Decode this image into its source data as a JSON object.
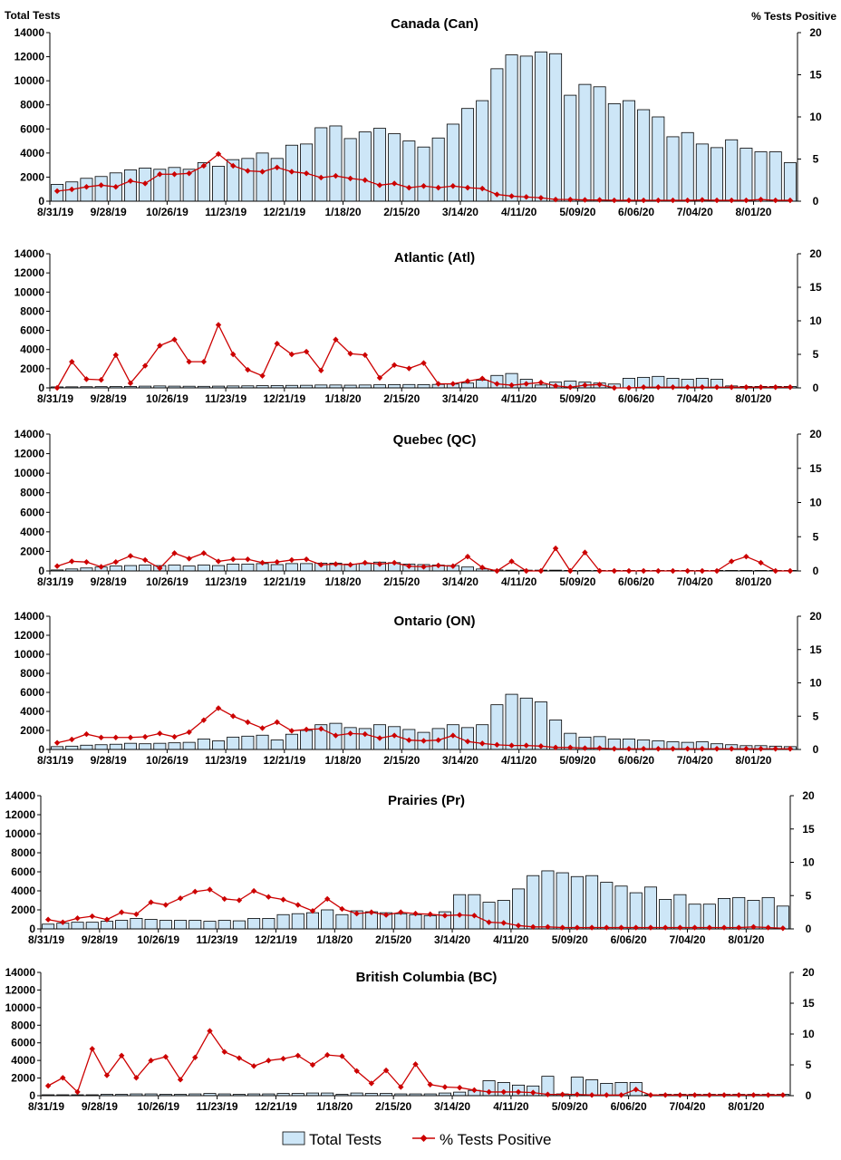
{
  "header": {
    "left_axis_label": "Total Tests",
    "right_axis_label": "% Tests Positive"
  },
  "legend": {
    "bars_label": "Total Tests",
    "line_label": "% Tests Positive"
  },
  "colors": {
    "bar_fill": "#cde6f7",
    "bar_stroke": "#000000",
    "line": "#cc0000"
  },
  "x_tick_labels": [
    "8/31/19",
    "9/28/19",
    "10/26/19",
    "11/23/19",
    "12/21/19",
    "1/18/20",
    "2/15/20",
    "3/14/20",
    "4/11/20",
    "5/09/20",
    "6/06/20",
    "7/04/20",
    "8/01/20"
  ],
  "y_left_ticks": [
    "0",
    "2000",
    "4000",
    "6000",
    "8000",
    "10000",
    "12000",
    "14000"
  ],
  "y_right_ticks": [
    "0",
    "5",
    "10",
    "15",
    "20"
  ],
  "chart_data": [
    {
      "type": "bar",
      "title": "Canada (Can)",
      "x_tick_labels": [
        "8/31/19",
        "9/28/19",
        "10/26/19",
        "11/23/19",
        "12/21/19",
        "1/18/20",
        "2/15/20",
        "3/14/20",
        "4/11/20",
        "5/09/20",
        "6/06/20",
        "7/04/20",
        "8/01/20"
      ],
      "ylim": [
        0,
        14000
      ],
      "y2lim": [
        0,
        20
      ],
      "series": [
        {
          "name": "Total Tests",
          "axis": "left",
          "values": [
            1400,
            1600,
            1900,
            2050,
            2350,
            2600,
            2750,
            2650,
            2800,
            2650,
            3200,
            2900,
            3450,
            3550,
            4000,
            3550,
            4650,
            4750,
            6100,
            6250,
            5200,
            5750,
            6050,
            5600,
            5000,
            4500,
            5250,
            6400,
            7700,
            8350,
            11000,
            12150,
            12050,
            12400,
            12250,
            8800,
            9700,
            9500,
            8100,
            8350,
            7600,
            7000,
            5350,
            5700,
            4750,
            4450,
            5100,
            4400,
            4100,
            4100,
            3200
          ]
        },
        {
          "name": "% Tests Positive",
          "axis": "right",
          "values": [
            1.2,
            1.4,
            1.7,
            1.9,
            1.7,
            2.4,
            2.1,
            3.2,
            3.2,
            3.3,
            4.2,
            5.6,
            4.2,
            3.6,
            3.5,
            4.0,
            3.5,
            3.3,
            2.8,
            3.0,
            2.7,
            2.5,
            1.9,
            2.1,
            1.6,
            1.8,
            1.6,
            1.8,
            1.6,
            1.5,
            0.8,
            0.6,
            0.5,
            0.4,
            0.2,
            0.2,
            0.15,
            0.15,
            0.1,
            0.1,
            0.1,
            0.1,
            0.1,
            0.1,
            0.15,
            0.1,
            0.1,
            0.1,
            0.2,
            0.1,
            0.1
          ]
        }
      ]
    },
    {
      "type": "bar",
      "title": "Atlantic (Atl)",
      "x_tick_labels": [
        "8/31/19",
        "9/28/19",
        "10/26/19",
        "11/23/19",
        "12/21/19",
        "1/18/20",
        "2/15/20",
        "3/14/20",
        "4/11/20",
        "5/09/20",
        "6/06/20",
        "7/04/20",
        "8/01/20"
      ],
      "ylim": [
        0,
        14000
      ],
      "y2lim": [
        0,
        20
      ],
      "series": [
        {
          "name": "Total Tests",
          "axis": "left",
          "values": [
            100,
            110,
            120,
            130,
            140,
            150,
            180,
            200,
            180,
            170,
            160,
            180,
            200,
            210,
            230,
            250,
            260,
            270,
            300,
            300,
            280,
            300,
            320,
            340,
            350,
            340,
            360,
            400,
            500,
            800,
            1300,
            1500,
            900,
            300,
            600,
            700,
            600,
            500,
            400,
            1000,
            1100,
            1200,
            1000,
            900,
            1000,
            900,
            200,
            150,
            150,
            150,
            150
          ]
        },
        {
          "name": "% Tests Positive",
          "axis": "right",
          "values": [
            0,
            3.9,
            1.3,
            1.2,
            4.9,
            0.7,
            3.3,
            6.3,
            7.2,
            3.9,
            3.9,
            9.4,
            5.0,
            2.7,
            1.8,
            6.6,
            5.0,
            5.4,
            2.6,
            7.2,
            5.1,
            4.9,
            1.5,
            3.4,
            2.9,
            3.7,
            0.6,
            0.6,
            1.0,
            1.4,
            0.6,
            0.4,
            0.6,
            0.8,
            0.3,
            0.1,
            0.4,
            0.5,
            0,
            0,
            0.1,
            0.1,
            0.1,
            0.1,
            0.1,
            0.1,
            0.1,
            0.1,
            0.1,
            0.1,
            0.1
          ]
        }
      ]
    },
    {
      "type": "bar",
      "title": "Quebec (QC)",
      "x_tick_labels": [
        "8/31/19",
        "9/28/19",
        "10/26/19",
        "11/23/19",
        "12/21/19",
        "1/18/20",
        "2/15/20",
        "3/14/20",
        "4/11/20",
        "5/09/20",
        "6/06/20",
        "7/04/20",
        "8/01/20"
      ],
      "ylim": [
        0,
        14000
      ],
      "y2lim": [
        0,
        20
      ],
      "series": [
        {
          "name": "Total Tests",
          "axis": "left",
          "values": [
            100,
            200,
            300,
            400,
            500,
            550,
            600,
            550,
            600,
            500,
            600,
            550,
            700,
            700,
            750,
            650,
            750,
            750,
            800,
            800,
            700,
            750,
            900,
            850,
            700,
            650,
            600,
            550,
            400,
            200,
            100,
            80,
            80,
            80,
            80,
            50,
            50,
            50,
            50,
            50,
            50,
            50,
            50,
            50,
            50,
            50,
            50,
            50,
            50,
            50,
            50
          ]
        },
        {
          "name": "% Tests Positive",
          "axis": "right",
          "values": [
            0.7,
            1.4,
            1.3,
            0.6,
            1.3,
            2.2,
            1.6,
            0.4,
            2.6,
            1.8,
            2.6,
            1.4,
            1.7,
            1.7,
            1.2,
            1.3,
            1.6,
            1.7,
            0.9,
            1.0,
            0.9,
            1.2,
            1.0,
            1.2,
            0.7,
            0.6,
            0.8,
            0.7,
            2.1,
            0.5,
            0,
            1.4,
            0,
            0,
            3.3,
            0,
            2.7,
            0,
            0,
            0,
            0,
            0,
            0,
            0,
            0,
            0,
            1.4,
            2.1,
            1.2,
            0,
            0
          ]
        }
      ]
    },
    {
      "type": "bar",
      "title": "Ontario (ON)",
      "x_tick_labels": [
        "8/31/19",
        "9/28/19",
        "10/26/19",
        "11/23/19",
        "12/21/19",
        "1/18/20",
        "2/15/20",
        "3/14/20",
        "4/11/20",
        "5/09/20",
        "6/06/20",
        "7/04/20",
        "8/01/20"
      ],
      "ylim": [
        0,
        14000
      ],
      "y2lim": [
        0,
        20
      ],
      "series": [
        {
          "name": "Total Tests",
          "axis": "left",
          "values": [
            300,
            350,
            450,
            500,
            550,
            650,
            600,
            650,
            700,
            750,
            1100,
            900,
            1300,
            1400,
            1500,
            1000,
            1600,
            2000,
            2600,
            2750,
            2300,
            2200,
            2600,
            2400,
            2100,
            1800,
            2200,
            2600,
            2300,
            2600,
            4700,
            5800,
            5400,
            5000,
            3100,
            1700,
            1300,
            1350,
            1100,
            1100,
            1000,
            900,
            800,
            750,
            800,
            600,
            500,
            400,
            400,
            350,
            300
          ]
        },
        {
          "name": "% Tests Positive",
          "axis": "right",
          "values": [
            1.0,
            1.5,
            2.3,
            1.8,
            1.8,
            1.8,
            1.9,
            2.4,
            1.9,
            2.6,
            4.4,
            6.2,
            5.0,
            4.1,
            3.2,
            4.1,
            2.8,
            3.0,
            3.1,
            2.1,
            2.4,
            2.3,
            1.7,
            2.1,
            1.4,
            1.3,
            1.4,
            2.1,
            1.2,
            0.9,
            0.7,
            0.6,
            0.6,
            0.5,
            0.3,
            0.3,
            0.2,
            0.2,
            0.1,
            0.1,
            0.1,
            0.1,
            0.1,
            0.1,
            0.1,
            0.1,
            0.1,
            0.1,
            0.1,
            0.1,
            0.1
          ]
        }
      ]
    },
    {
      "type": "bar",
      "title": "Prairies (Pr)",
      "x_tick_labels": [
        "8/31/19",
        "9/28/19",
        "10/26/19",
        "11/23/19",
        "12/21/19",
        "1/18/20",
        "2/15/20",
        "3/14/20",
        "4/11/20",
        "5/09/20",
        "6/06/20",
        "7/04/20",
        "8/01/20"
      ],
      "ylim": [
        0,
        14000
      ],
      "y2lim": [
        0,
        20
      ],
      "series": [
        {
          "name": "Total Tests",
          "axis": "left",
          "values": [
            500,
            600,
            700,
            700,
            800,
            900,
            1100,
            1000,
            900,
            900,
            900,
            800,
            900,
            850,
            1100,
            1100,
            1500,
            1600,
            1700,
            2000,
            1500,
            1900,
            1800,
            1700,
            1600,
            1500,
            1400,
            1800,
            3600,
            3600,
            2800,
            3000,
            4200,
            5600,
            6100,
            5900,
            5500,
            5600,
            4900,
            4500,
            3800,
            4400,
            3100,
            3600,
            2600,
            2600,
            3200,
            3300,
            3000,
            3300,
            2400
          ]
        },
        {
          "name": "% Tests Positive",
          "axis": "right",
          "values": [
            1.4,
            1.0,
            1.6,
            1.9,
            1.4,
            2.5,
            2.2,
            4.0,
            3.6,
            4.6,
            5.6,
            5.9,
            4.5,
            4.3,
            5.7,
            4.8,
            4.4,
            3.6,
            2.7,
            4.5,
            3.0,
            2.3,
            2.5,
            2.1,
            2.5,
            2.3,
            2.2,
            2.0,
            2.1,
            2.0,
            1.0,
            0.9,
            0.5,
            0.3,
            0.3,
            0.2,
            0.2,
            0.2,
            0.2,
            0.2,
            0.2,
            0.2,
            0.2,
            0.2,
            0.2,
            0.2,
            0.2,
            0.2,
            0.3,
            0.2,
            0.1
          ]
        }
      ]
    },
    {
      "type": "bar",
      "title": "British Columbia (BC)",
      "x_tick_labels": [
        "8/31/19",
        "9/28/19",
        "10/26/19",
        "11/23/19",
        "12/21/19",
        "1/18/20",
        "2/15/20",
        "3/14/20",
        "4/11/20",
        "5/09/20",
        "6/06/20",
        "7/04/20",
        "8/01/20"
      ],
      "ylim": [
        0,
        14000
      ],
      "y2lim": [
        0,
        20
      ],
      "series": [
        {
          "name": "Total Tests",
          "axis": "left",
          "values": [
            100,
            100,
            100,
            100,
            150,
            150,
            200,
            200,
            150,
            150,
            200,
            250,
            200,
            150,
            200,
            200,
            250,
            250,
            300,
            300,
            150,
            300,
            250,
            250,
            200,
            200,
            200,
            300,
            400,
            600,
            1700,
            1500,
            1200,
            1100,
            2200,
            200,
            2100,
            1800,
            1400,
            1500,
            1500,
            100,
            150,
            150,
            150,
            150,
            150,
            150,
            150,
            150,
            150
          ]
        },
        {
          "name": "% Tests Positive",
          "axis": "right",
          "values": [
            1.6,
            2.9,
            0.6,
            7.6,
            3.3,
            6.5,
            2.9,
            5.7,
            6.3,
            2.6,
            6.2,
            10.5,
            7.1,
            6.1,
            4.8,
            5.7,
            6.0,
            6.5,
            5.0,
            6.6,
            6.4,
            4.0,
            2.0,
            4.1,
            1.4,
            5.1,
            1.8,
            1.4,
            1.3,
            0.9,
            0.6,
            0.6,
            0.6,
            0.5,
            0.2,
            0.2,
            0.2,
            0.1,
            0.1,
            0.1,
            1.0,
            0.1,
            0.1,
            0.1,
            0.1,
            0.1,
            0.1,
            0.1,
            0.1,
            0.1,
            0.1
          ]
        }
      ]
    }
  ]
}
